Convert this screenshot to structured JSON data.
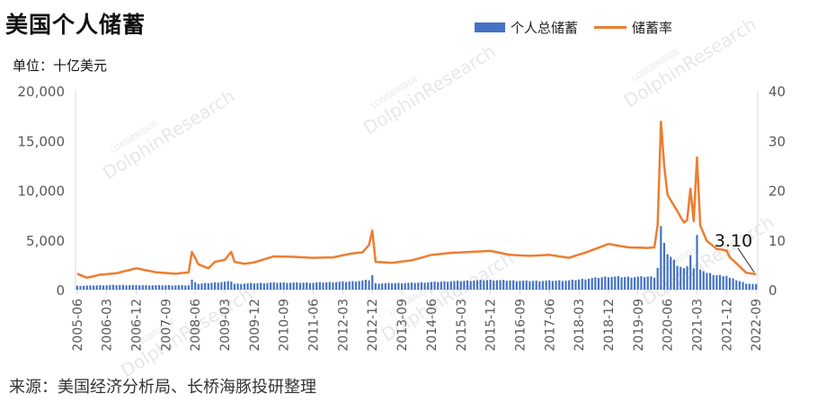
{
  "title": "美国个人储蓄",
  "unit_label": "单位：十亿美元",
  "source": "来源：美国经济分析局、长桥海豚投研整理",
  "watermark": {
    "brand_small": "LONGBRIDGE",
    "brand_large": "DolphinResearch"
  },
  "colors": {
    "bar": "#4472c4",
    "line": "#ed7d31",
    "axis": "#d9d9d9",
    "text": "#595959"
  },
  "chart_data": {
    "type": "bar+line",
    "series": [
      {
        "name": "个人总储蓄",
        "type": "bar",
        "axis": "left"
      },
      {
        "name": "储蓄率",
        "type": "line",
        "axis": "right"
      }
    ],
    "x_start": "2005-06",
    "x_end": "2022-09",
    "x_tick_labels": [
      "2005-06",
      "2006-03",
      "2006-12",
      "2007-09",
      "2008-06",
      "2009-03",
      "2009-12",
      "2010-09",
      "2011-06",
      "2012-03",
      "2012-12",
      "2013-09",
      "2014-06",
      "2015-03",
      "2015-12",
      "2016-09",
      "2017-06",
      "2018-03",
      "2018-12",
      "2019-09",
      "2020-06",
      "2021-03",
      "2021-12",
      "2022-09"
    ],
    "y_left": {
      "min": 0,
      "max": 20000,
      "ticks": [
        "0",
        "5,000",
        "10,000",
        "15,000",
        "20,000"
      ]
    },
    "y_right": {
      "min": 0,
      "max": 40,
      "ticks": [
        "0",
        "10",
        "20",
        "30",
        "40"
      ]
    },
    "annotation": {
      "text": "3.10",
      "date": "2022-09",
      "value": 3.1
    },
    "savings_rate_points": [
      [
        "2005-06",
        3.2
      ],
      [
        "2005-09",
        2.4
      ],
      [
        "2006-01",
        3.0
      ],
      [
        "2006-06",
        3.3
      ],
      [
        "2006-12",
        4.3
      ],
      [
        "2007-06",
        3.5
      ],
      [
        "2007-12",
        3.2
      ],
      [
        "2008-04",
        3.5
      ],
      [
        "2008-05",
        7.6
      ],
      [
        "2008-07",
        5.1
      ],
      [
        "2008-10",
        4.3
      ],
      [
        "2008-12",
        5.6
      ],
      [
        "2009-03",
        6.0
      ],
      [
        "2009-05",
        7.6
      ],
      [
        "2009-06",
        5.6
      ],
      [
        "2009-09",
        5.2
      ],
      [
        "2009-12",
        5.5
      ],
      [
        "2010-06",
        6.7
      ],
      [
        "2010-12",
        6.6
      ],
      [
        "2011-06",
        6.4
      ],
      [
        "2011-12",
        6.5
      ],
      [
        "2012-06",
        7.3
      ],
      [
        "2012-09",
        7.5
      ],
      [
        "2012-11",
        9.0
      ],
      [
        "2012-12",
        11.9
      ],
      [
        "2013-01",
        5.6
      ],
      [
        "2013-06",
        5.4
      ],
      [
        "2013-12",
        5.9
      ],
      [
        "2014-06",
        7.0
      ],
      [
        "2014-12",
        7.4
      ],
      [
        "2015-06",
        7.6
      ],
      [
        "2015-12",
        7.8
      ],
      [
        "2016-06",
        7.0
      ],
      [
        "2016-12",
        6.8
      ],
      [
        "2017-06",
        7.0
      ],
      [
        "2017-12",
        6.4
      ],
      [
        "2018-06",
        7.7
      ],
      [
        "2018-12",
        9.2
      ],
      [
        "2019-06",
        8.5
      ],
      [
        "2019-12",
        8.4
      ],
      [
        "2020-02",
        8.5
      ],
      [
        "2020-03",
        13.0
      ],
      [
        "2020-04",
        33.8
      ],
      [
        "2020-05",
        24.9
      ],
      [
        "2020-06",
        19.1
      ],
      [
        "2020-09",
        15.8
      ],
      [
        "2020-11",
        13.5
      ],
      [
        "2020-12",
        14.0
      ],
      [
        "2021-01",
        20.3
      ],
      [
        "2021-02",
        13.8
      ],
      [
        "2021-03",
        26.6
      ],
      [
        "2021-04",
        12.9
      ],
      [
        "2021-06",
        9.8
      ],
      [
        "2021-09",
        8.2
      ],
      [
        "2021-12",
        7.9
      ],
      [
        "2022-01",
        6.5
      ],
      [
        "2022-03",
        5.3
      ],
      [
        "2022-06",
        3.4
      ],
      [
        "2022-09",
        3.1
      ]
    ],
    "total_savings_points": [
      [
        "2005-06",
        400
      ],
      [
        "2006-06",
        480
      ],
      [
        "2007-06",
        450
      ],
      [
        "2008-04",
        450
      ],
      [
        "2008-05",
        1000
      ],
      [
        "2008-07",
        600
      ],
      [
        "2009-05",
        870
      ],
      [
        "2009-06",
        600
      ],
      [
        "2010-06",
        730
      ],
      [
        "2011-06",
        720
      ],
      [
        "2012-06",
        850
      ],
      [
        "2012-11",
        1000
      ],
      [
        "2012-12",
        1500
      ],
      [
        "2013-01",
        650
      ],
      [
        "2013-12",
        700
      ],
      [
        "2014-12",
        870
      ],
      [
        "2015-12",
        1000
      ],
      [
        "2016-06",
        940
      ],
      [
        "2016-12",
        900
      ],
      [
        "2017-12",
        950
      ],
      [
        "2018-12",
        1350
      ],
      [
        "2019-06",
        1300
      ],
      [
        "2019-12",
        1350
      ],
      [
        "2020-02",
        1300
      ],
      [
        "2020-03",
        2300
      ],
      [
        "2020-04",
        6400
      ],
      [
        "2020-05",
        4600
      ],
      [
        "2020-06",
        3800
      ],
      [
        "2020-09",
        2600
      ],
      [
        "2020-11",
        2200
      ],
      [
        "2020-12",
        2300
      ],
      [
        "2021-01",
        3700
      ],
      [
        "2021-02",
        2200
      ],
      [
        "2021-03",
        5500
      ],
      [
        "2021-04",
        2200
      ],
      [
        "2021-06",
        1700
      ],
      [
        "2021-09",
        1500
      ],
      [
        "2021-12",
        1450
      ],
      [
        "2022-01",
        1200
      ],
      [
        "2022-03",
        1000
      ],
      [
        "2022-06",
        650
      ],
      [
        "2022-09",
        550
      ]
    ]
  }
}
